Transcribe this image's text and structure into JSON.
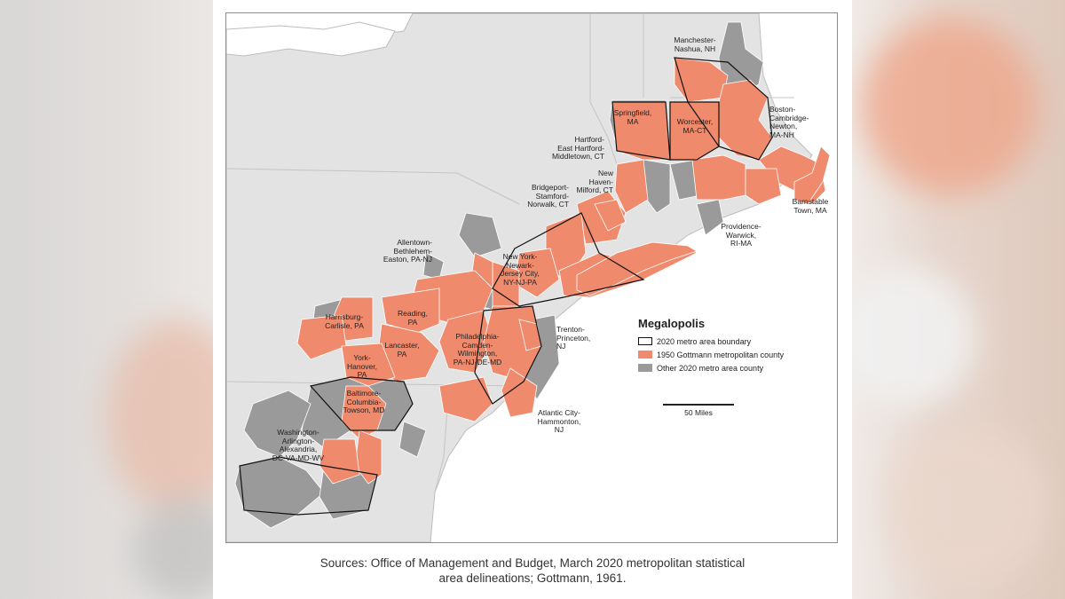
{
  "legend": {
    "title": "Megalopolis",
    "items": [
      {
        "label": "2020 metro area boundary",
        "type": "boundary"
      },
      {
        "label": "1950 Gottmann metropolitan county",
        "type": "gottmann",
        "color": "#f08a6c"
      },
      {
        "label": "Other 2020 metro area county",
        "type": "other",
        "color": "#9a9a9a"
      }
    ]
  },
  "scale": {
    "label": "50 Miles"
  },
  "colors": {
    "gottmann": "#f08a6c",
    "other": "#9a9a9a",
    "land": "#e3e3e3",
    "water": "#ffffff",
    "boundary": "#111111"
  },
  "metro_labels": {
    "manchester": "Manchester-\nNashua, NH",
    "boston": "Boston-\nCambridge-\nNewton,\nMA-NH",
    "springfield": "Springfield,\nMA",
    "worcester": "Worcester,\nMA-CT",
    "hartford": "Hartford-\nEast Hartford-\nMiddletown, CT",
    "new_haven": "New\nHaven-\nMilford, CT",
    "bridgeport": "Bridgeport-\nStamford-\nNorwalk, CT",
    "barnstable": "Barnstable\nTown, MA",
    "providence": "Providence-\nWarwick,\nRI-MA",
    "allentown": "Allentown-\nBethlehem-\nEaston, PA-NJ",
    "new_york": "New York-\nNewark-\nJersey City,\nNY-NJ-PA",
    "harrisburg": "Harrisburg-\nCarlisle, PA",
    "reading": "Reading,\nPA",
    "lancaster": "Lancaster,\nPA",
    "york": "York-\nHanover,\nPA",
    "philadelphia": "Philadelphia-\nCamden-\nWilmington,\nPA-NJ-DE-MD",
    "trenton": "Trenton-\nPrinceton,\nNJ",
    "atlantic_city": "Atlantic City-\nHammonton,\nNJ",
    "baltimore": "Baltimore-\nColumbia-\nTowson, MD",
    "washington": "Washington-\nArlington-\nAlexandria,\nDC-VA-MD-WV"
  },
  "caption": {
    "line1": "Sources: Office of Management and Budget, March 2020 metropolitan statistical",
    "line2": "area delineations; Gottmann, 1961."
  }
}
